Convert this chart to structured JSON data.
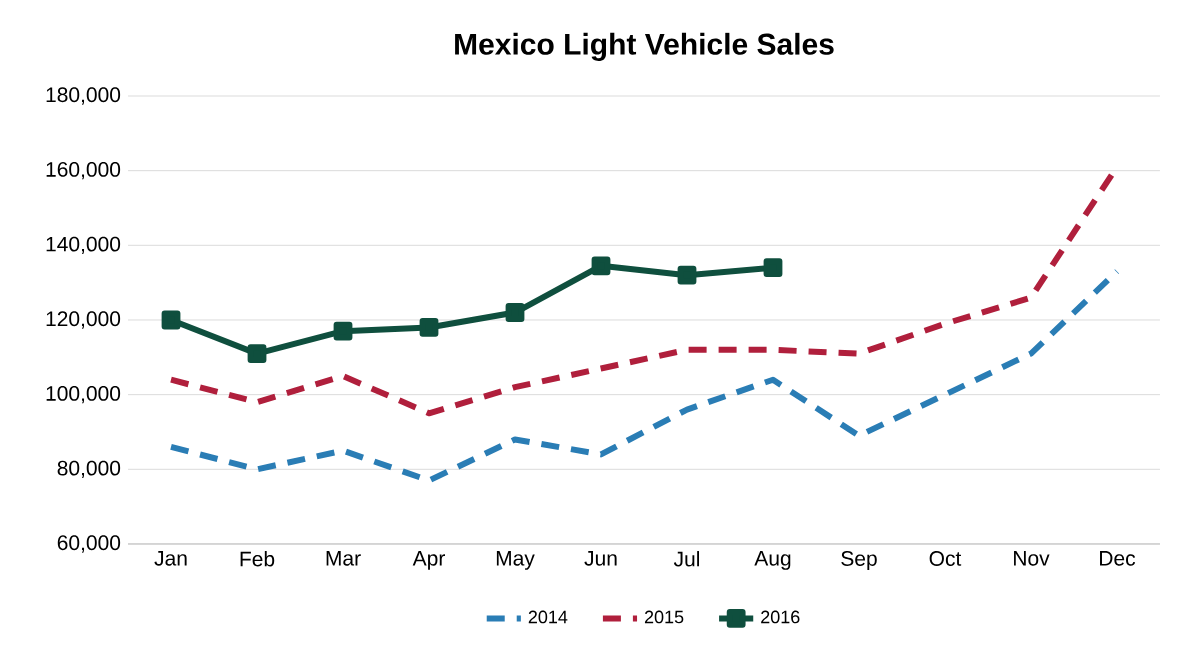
{
  "chart_data": {
    "type": "line",
    "title": "Mexico Light Vehicle Sales",
    "categories": [
      "Jan",
      "Feb",
      "Mar",
      "Apr",
      "May",
      "Jun",
      "Jul",
      "Aug",
      "Sep",
      "Oct",
      "Nov",
      "Dec"
    ],
    "series": [
      {
        "name": "2014",
        "color": "#2a7db5",
        "line_style": "dashed",
        "marker": "none",
        "values": [
          86000,
          80000,
          85000,
          77000,
          88000,
          84000,
          96000,
          104000,
          89000,
          100000,
          111000,
          133000
        ]
      },
      {
        "name": "2015",
        "color": "#b01f3c",
        "line_style": "dashed",
        "marker": "none",
        "values": [
          104000,
          98000,
          105000,
          95000,
          102000,
          107000,
          112000,
          112000,
          111000,
          119000,
          126000,
          161000
        ]
      },
      {
        "name": "2016",
        "color": "#0f4f3e",
        "line_style": "solid",
        "marker": "square",
        "values": [
          120000,
          111000,
          117000,
          118000,
          122000,
          134500,
          132000,
          134000,
          null,
          null,
          null,
          null
        ]
      }
    ],
    "ylim": [
      60000,
      180000
    ],
    "yticks": [
      {
        "value": 60000,
        "label": "60,000"
      },
      {
        "value": 80000,
        "label": "80,000"
      },
      {
        "value": 100000,
        "label": "100,000"
      },
      {
        "value": 120000,
        "label": "120,000"
      },
      {
        "value": 140000,
        "label": "140,000"
      },
      {
        "value": 160000,
        "label": "160,000"
      },
      {
        "value": 180000,
        "label": "180,000"
      }
    ],
    "grid": "y",
    "legend": "bottom"
  }
}
